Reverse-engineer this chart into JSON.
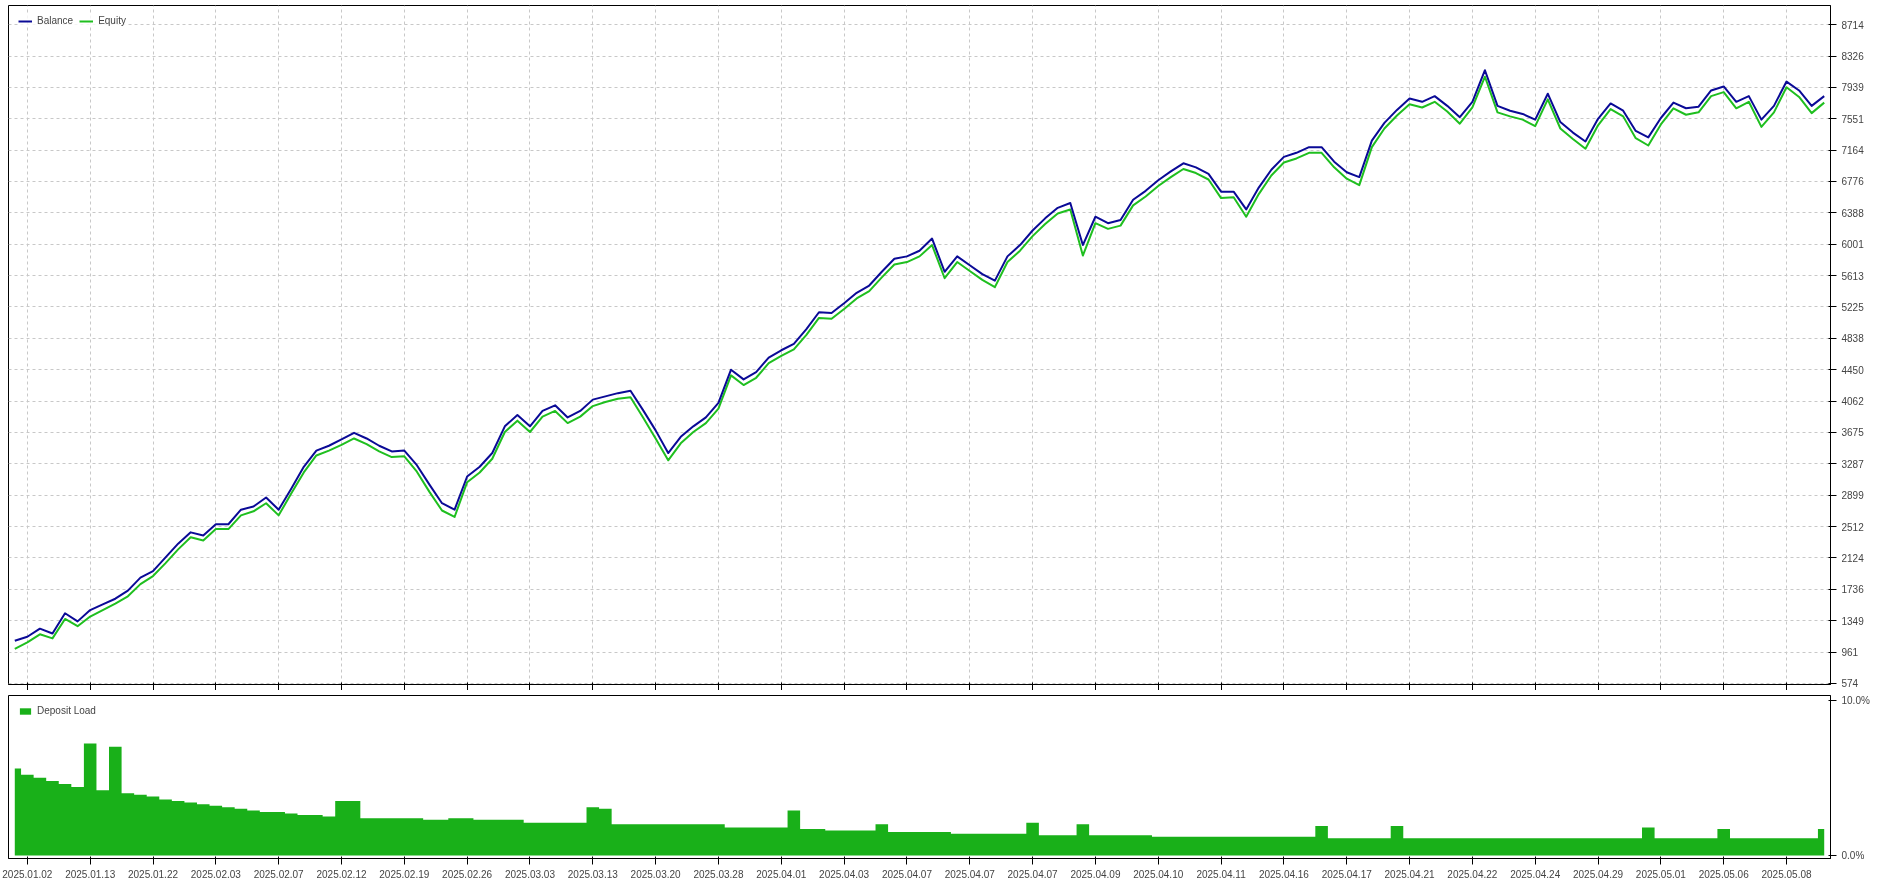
{
  "chart_data": [
    {
      "type": "line",
      "ylim": [
        560,
        8950
      ],
      "categories": [
        null,
        "2025.01.02",
        null,
        null,
        null,
        null,
        "2025.01.13",
        null,
        null,
        null,
        null,
        "2025.01.22",
        null,
        null,
        null,
        null,
        "2025.02.03",
        null,
        null,
        null,
        null,
        "2025.02.07",
        null,
        null,
        null,
        null,
        "2025.02.12",
        null,
        null,
        null,
        null,
        "2025.02.19",
        null,
        null,
        null,
        null,
        "2025.02.26",
        null,
        null,
        null,
        null,
        "2025.03.03",
        null,
        null,
        null,
        null,
        "2025.03.13",
        null,
        null,
        null,
        null,
        "2025.03.20",
        null,
        null,
        null,
        null,
        "2025.03.28",
        null,
        null,
        null,
        null,
        "2025.04.01",
        null,
        null,
        null,
        null,
        "2025.04.03",
        null,
        null,
        null,
        null,
        "2025.04.07",
        null,
        null,
        null,
        null,
        "2025.04.07",
        null,
        null,
        null,
        null,
        "2025.04.07",
        null,
        null,
        null,
        null,
        "2025.04.09",
        null,
        null,
        null,
        null,
        "2025.04.10",
        null,
        null,
        null,
        null,
        "2025.04.11",
        null,
        null,
        null,
        null,
        "2025.04.16",
        null,
        null,
        null,
        null,
        "2025.04.17",
        null,
        null,
        null,
        null,
        "2025.04.21",
        null,
        null,
        null,
        null,
        "2025.04.22",
        null,
        null,
        null,
        null,
        "2025.04.24",
        null,
        null,
        null,
        null,
        "2025.04.29",
        null,
        null,
        null,
        null,
        "2025.05.01",
        null,
        null,
        null,
        null,
        "2025.05.06",
        null,
        null,
        null,
        null,
        "2025.05.08",
        null,
        null,
        null
      ],
      "yticks": [
        574,
        961,
        1349,
        1736,
        2124,
        2512,
        2899,
        3287,
        3675,
        4062,
        4450,
        4838,
        5225,
        5613,
        6001,
        6388,
        6776,
        7164,
        7551,
        7939,
        8326,
        8714
      ],
      "grid": true,
      "legend": "top left",
      "tick_labels": "y",
      "series": [
        {
          "name": "Equity",
          "color": "#1fbf1f",
          "values": [
            1000,
            1080,
            1180,
            1130,
            1370,
            1280,
            1400,
            1480,
            1560,
            1650,
            1800,
            1900,
            2060,
            2230,
            2380,
            2340,
            2480,
            2480,
            2650,
            2700,
            2800,
            2650,
            2920,
            3180,
            3390,
            3450,
            3520,
            3600,
            3530,
            3440,
            3370,
            3380,
            3190,
            2940,
            2710,
            2630,
            3060,
            3180,
            3350,
            3680,
            3820,
            3680,
            3870,
            3940,
            3790,
            3870,
            4000,
            4050,
            4090,
            4110,
            3860,
            3600,
            3330,
            3540,
            3680,
            3790,
            3970,
            4380,
            4260,
            4350,
            4530,
            4620,
            4700,
            4880,
            5090,
            5080,
            5200,
            5330,
            5420,
            5590,
            5750,
            5780,
            5850,
            5990,
            5580,
            5780,
            5670,
            5560,
            5470,
            5780,
            5920,
            6100,
            6250,
            6380,
            6430,
            5860,
            6260,
            6190,
            6230,
            6480,
            6590,
            6720,
            6830,
            6930,
            6880,
            6800,
            6570,
            6580,
            6340,
            6620,
            6850,
            7010,
            7060,
            7130,
            7130,
            6950,
            6810,
            6730,
            7200,
            7430,
            7590,
            7730,
            7690,
            7760,
            7640,
            7490,
            7690,
            8070,
            7630,
            7580,
            7540,
            7460,
            7790,
            7430,
            7300,
            7180,
            7470,
            7670,
            7580,
            7310,
            7220,
            7480,
            7680,
            7600,
            7630,
            7830,
            7880,
            7680,
            7760,
            7450,
            7630,
            7940,
            7820,
            7620,
            7750
          ]
        },
        {
          "name": "Balance",
          "color": "#0a0a96",
          "values": [
            1100,
            1150,
            1250,
            1190,
            1440,
            1340,
            1480,
            1550,
            1620,
            1720,
            1880,
            1960,
            2130,
            2300,
            2440,
            2400,
            2540,
            2540,
            2720,
            2760,
            2870,
            2720,
            2980,
            3250,
            3450,
            3510,
            3590,
            3670,
            3600,
            3510,
            3440,
            3450,
            3270,
            3030,
            2800,
            2720,
            3130,
            3250,
            3420,
            3750,
            3890,
            3750,
            3940,
            4010,
            3860,
            3940,
            4080,
            4120,
            4160,
            4190,
            3950,
            3700,
            3420,
            3620,
            3750,
            3860,
            4040,
            4450,
            4330,
            4420,
            4600,
            4690,
            4770,
            4950,
            5160,
            5150,
            5270,
            5400,
            5490,
            5660,
            5820,
            5850,
            5920,
            6070,
            5660,
            5850,
            5740,
            5630,
            5550,
            5850,
            5990,
            6170,
            6320,
            6450,
            6510,
            5990,
            6340,
            6260,
            6300,
            6550,
            6660,
            6790,
            6900,
            7000,
            6950,
            6870,
            6650,
            6650,
            6430,
            6700,
            6920,
            7080,
            7130,
            7200,
            7200,
            7020,
            6890,
            6830,
            7280,
            7500,
            7660,
            7800,
            7760,
            7830,
            7710,
            7570,
            7760,
            8150,
            7710,
            7650,
            7610,
            7540,
            7860,
            7510,
            7380,
            7270,
            7550,
            7740,
            7650,
            7400,
            7320,
            7560,
            7750,
            7680,
            7700,
            7900,
            7950,
            7760,
            7830,
            7540,
            7710,
            8010,
            7900,
            7710,
            7830
          ]
        }
      ]
    },
    {
      "type": "area",
      "ylim": [
        -0.2,
        10.3
      ],
      "categories": [
        null,
        "2025.01.02",
        null,
        null,
        null,
        null,
        "2025.01.13",
        null,
        null,
        null,
        null,
        "2025.01.22",
        null,
        null,
        null,
        null,
        "2025.02.03",
        null,
        null,
        null,
        null,
        "2025.02.07",
        null,
        null,
        null,
        null,
        "2025.02.12",
        null,
        null,
        null,
        null,
        "2025.02.19",
        null,
        null,
        null,
        null,
        "2025.02.26",
        null,
        null,
        null,
        null,
        "2025.03.03",
        null,
        null,
        null,
        null,
        "2025.03.13",
        null,
        null,
        null,
        null,
        "2025.03.20",
        null,
        null,
        null,
        null,
        "2025.03.28",
        null,
        null,
        null,
        null,
        "2025.04.01",
        null,
        null,
        null,
        null,
        "2025.04.03",
        null,
        null,
        null,
        null,
        "2025.04.07",
        null,
        null,
        null,
        null,
        "2025.04.07",
        null,
        null,
        null,
        null,
        "2025.04.07",
        null,
        null,
        null,
        null,
        "2025.04.09",
        null,
        null,
        null,
        null,
        "2025.04.10",
        null,
        null,
        null,
        null,
        "2025.04.11",
        null,
        null,
        null,
        null,
        "2025.04.16",
        null,
        null,
        null,
        null,
        "2025.04.17",
        null,
        null,
        null,
        null,
        "2025.04.21",
        null,
        null,
        null,
        null,
        "2025.04.22",
        null,
        null,
        null,
        null,
        "2025.04.24",
        null,
        null,
        null,
        null,
        "2025.04.29",
        null,
        null,
        null,
        null,
        "2025.05.01",
        null,
        null,
        null,
        null,
        "2025.05.06",
        null,
        null,
        null,
        null,
        "2025.05.08",
        null,
        null,
        null
      ],
      "yticks": [
        {
          "value": 0,
          "label": "0.0%"
        },
        {
          "value": 10,
          "label": "10.0%"
        }
      ],
      "legend": "top left",
      "series": [
        {
          "name": "Deposit Load",
          "color": "#19b019",
          "values": [
            5.6,
            5.2,
            5.0,
            4.8,
            4.6,
            4.4,
            7.2,
            4.2,
            7.0,
            4.0,
            3.9,
            3.8,
            3.6,
            3.5,
            3.4,
            3.3,
            3.2,
            3.1,
            3.0,
            2.9,
            2.8,
            2.8,
            2.7,
            2.6,
            2.6,
            2.5,
            3.5,
            3.5,
            2.4,
            2.4,
            2.4,
            2.4,
            2.4,
            2.3,
            2.3,
            2.4,
            2.4,
            2.3,
            2.3,
            2.3,
            2.3,
            2.1,
            2.1,
            2.1,
            2.1,
            2.1,
            3.1,
            3.0,
            2.0,
            2.0,
            2.0,
            2.0,
            2.0,
            2.0,
            2.0,
            2.0,
            2.0,
            1.8,
            1.8,
            1.8,
            1.8,
            1.8,
            2.9,
            1.7,
            1.7,
            1.6,
            1.6,
            1.6,
            1.6,
            2.0,
            1.5,
            1.5,
            1.5,
            1.5,
            1.5,
            1.4,
            1.4,
            1.4,
            1.4,
            1.4,
            1.4,
            2.1,
            1.3,
            1.3,
            1.3,
            2.0,
            1.3,
            1.3,
            1.3,
            1.3,
            1.3,
            1.2,
            1.2,
            1.2,
            1.2,
            1.2,
            1.2,
            1.2,
            1.2,
            1.2,
            1.2,
            1.2,
            1.2,
            1.2,
            1.9,
            1.1,
            1.1,
            1.1,
            1.1,
            1.1,
            1.9,
            1.1,
            1.1,
            1.1,
            1.1,
            1.1,
            1.1,
            1.1,
            1.1,
            1.1,
            1.1,
            1.1,
            1.1,
            1.1,
            1.1,
            1.1,
            1.1,
            1.1,
            1.1,
            1.1,
            1.8,
            1.1,
            1.1,
            1.1,
            1.1,
            1.1,
            1.7,
            1.1,
            1.1,
            1.1,
            1.1,
            1.1,
            1.1,
            1.1,
            1.7
          ]
        }
      ]
    }
  ]
}
